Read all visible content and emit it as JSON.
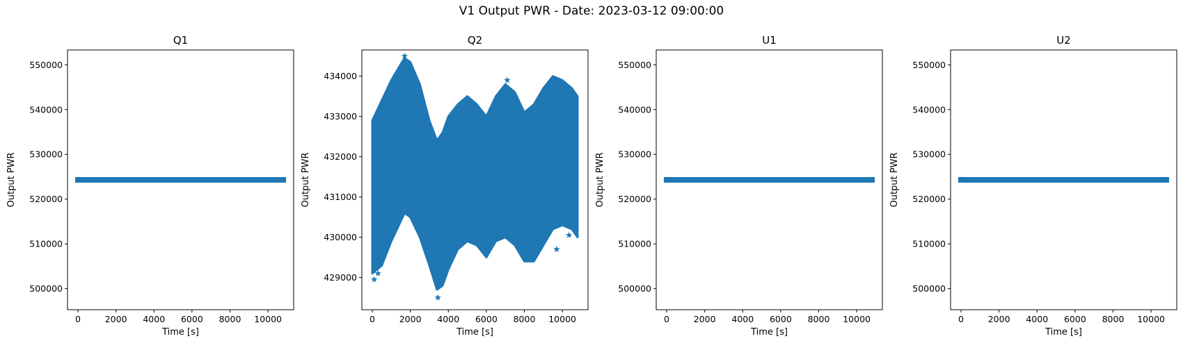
{
  "figure": {
    "title": "V1 Output PWR - Date: 2023-03-12 09:00:00",
    "series_color": "#1f77b4"
  },
  "chart_data": [
    {
      "type": "scatter",
      "title": "Q1",
      "xlabel": "Time [s]",
      "ylabel": "Output PWR",
      "marker": "star",
      "xlim": [
        -550,
        11350
      ],
      "ylim": [
        495300,
        553300
      ],
      "xticks": [
        0,
        2000,
        4000,
        6000,
        8000,
        10000
      ],
      "yticks": [
        500000,
        510000,
        520000,
        530000,
        540000,
        550000
      ],
      "ytick_labels": [
        "500000",
        "510000",
        "520000",
        "530000",
        "540000",
        "550000"
      ],
      "x_range": [
        0,
        10800
      ],
      "y_constant": 524300
    },
    {
      "type": "scatter",
      "title": "Q2",
      "xlabel": "Time [s]",
      "ylabel": "Output PWR",
      "marker": "star",
      "xlim": [
        -550,
        11350
      ],
      "ylim": [
        428200,
        434650
      ],
      "xticks": [
        0,
        2000,
        4000,
        6000,
        8000,
        10000
      ],
      "yticks": [
        429000,
        430000,
        431000,
        432000,
        433000,
        434000
      ],
      "ytick_labels": [
        "429000",
        "430000",
        "431000",
        "432000",
        "433000",
        "434000"
      ],
      "x_range": [
        0,
        10800
      ],
      "envelope_x": [
        0,
        500,
        1000,
        1500,
        1700,
        2000,
        2500,
        3000,
        3400,
        3700,
        4000,
        4500,
        5000,
        5500,
        6000,
        6500,
        7000,
        7500,
        8000,
        8500,
        9000,
        9500,
        10000,
        10500,
        10800
      ],
      "envelope_upper": [
        432900,
        433400,
        433900,
        434300,
        434450,
        434350,
        433800,
        432900,
        432400,
        432600,
        433000,
        433300,
        433500,
        433300,
        433000,
        433500,
        433800,
        433600,
        433100,
        433300,
        433700,
        434000,
        433900,
        433700,
        433500
      ],
      "envelope_lower": [
        429100,
        429300,
        429900,
        430400,
        430600,
        430500,
        430000,
        429300,
        428700,
        428800,
        429200,
        429700,
        429900,
        429800,
        429500,
        429900,
        430000,
        429800,
        429400,
        429400,
        429800,
        430200,
        430300,
        430200,
        430000
      ],
      "outliers": [
        [
          100,
          428950
        ],
        [
          300,
          429100
        ],
        [
          3450,
          428500
        ],
        [
          9700,
          429700
        ],
        [
          10350,
          430050
        ],
        [
          7100,
          433900
        ],
        [
          1700,
          434500
        ]
      ]
    },
    {
      "type": "scatter",
      "title": "U1",
      "xlabel": "Time [s]",
      "ylabel": "Output PWR",
      "marker": "star",
      "xlim": [
        -550,
        11350
      ],
      "ylim": [
        495300,
        553300
      ],
      "xticks": [
        0,
        2000,
        4000,
        6000,
        8000,
        10000
      ],
      "yticks": [
        500000,
        510000,
        520000,
        530000,
        540000,
        550000
      ],
      "ytick_labels": [
        "500000",
        "510000",
        "520000",
        "530000",
        "540000",
        "550000"
      ],
      "x_range": [
        0,
        10800
      ],
      "y_constant": 524300
    },
    {
      "type": "scatter",
      "title": "U2",
      "xlabel": "Time [s]",
      "ylabel": "Output PWR",
      "marker": "star",
      "xlim": [
        -550,
        11350
      ],
      "ylim": [
        495300,
        553300
      ],
      "xticks": [
        0,
        2000,
        4000,
        6000,
        8000,
        10000
      ],
      "yticks": [
        500000,
        510000,
        520000,
        530000,
        540000,
        550000
      ],
      "ytick_labels": [
        "500000",
        "510000",
        "520000",
        "530000",
        "540000",
        "550000"
      ],
      "x_range": [
        0,
        10800
      ],
      "y_constant": 524300
    }
  ]
}
